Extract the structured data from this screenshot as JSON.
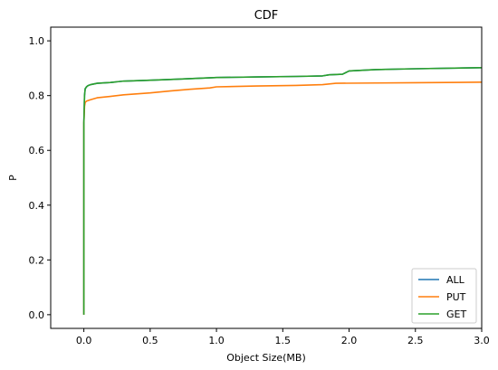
{
  "chart_data": {
    "type": "line",
    "title": "CDF",
    "xlabel": "Object Size(MB)",
    "ylabel": "P",
    "xlim": [
      -0.25,
      3.0
    ],
    "ylim": [
      -0.05,
      1.05
    ],
    "xticks": [
      0.0,
      0.5,
      1.0,
      1.5,
      2.0,
      2.5,
      3.0
    ],
    "xtick_labels": [
      "0.0",
      "0.5",
      "1.0",
      "1.5",
      "2.0",
      "2.5",
      "3.0"
    ],
    "yticks": [
      0.0,
      0.2,
      0.4,
      0.6,
      0.8,
      1.0
    ],
    "ytick_labels": [
      "0.0",
      "0.2",
      "0.4",
      "0.6",
      "0.8",
      "1.0"
    ],
    "grid": false,
    "legend_position": "lower-right",
    "series": [
      {
        "name": "ALL",
        "color": "#1f77b4",
        "x": [
          0.0,
          0.0,
          0.005,
          0.01,
          0.02,
          0.03,
          0.05,
          0.08,
          0.1,
          0.2,
          0.3,
          0.5,
          0.7,
          0.9,
          1.0,
          1.3,
          1.6,
          1.8,
          1.85,
          1.95,
          2.0,
          2.2,
          2.5,
          3.0
        ],
        "y": [
          0.0,
          0.7,
          0.8,
          0.825,
          0.832,
          0.836,
          0.84,
          0.843,
          0.845,
          0.848,
          0.853,
          0.856,
          0.86,
          0.864,
          0.866,
          0.868,
          0.87,
          0.872,
          0.876,
          0.878,
          0.89,
          0.895,
          0.898,
          0.902
        ]
      },
      {
        "name": "PUT",
        "color": "#ff7f0e",
        "x": [
          0.0,
          0.0,
          0.005,
          0.01,
          0.02,
          0.05,
          0.1,
          0.2,
          0.3,
          0.5,
          0.65,
          0.8,
          0.95,
          1.0,
          1.3,
          1.6,
          1.8,
          1.9,
          2.2,
          2.5,
          3.0
        ],
        "y": [
          0.0,
          0.7,
          0.76,
          0.775,
          0.78,
          0.785,
          0.792,
          0.797,
          0.803,
          0.81,
          0.817,
          0.823,
          0.828,
          0.832,
          0.835,
          0.837,
          0.84,
          0.845,
          0.846,
          0.847,
          0.849
        ]
      },
      {
        "name": "GET",
        "color": "#2ca02c",
        "x": [
          0.0,
          0.0,
          0.005,
          0.01,
          0.02,
          0.03,
          0.05,
          0.08,
          0.1,
          0.2,
          0.3,
          0.5,
          0.7,
          0.9,
          1.0,
          1.3,
          1.6,
          1.8,
          1.85,
          1.95,
          2.0,
          2.2,
          2.5,
          3.0
        ],
        "y": [
          0.0,
          0.7,
          0.8,
          0.825,
          0.832,
          0.836,
          0.84,
          0.843,
          0.845,
          0.848,
          0.853,
          0.856,
          0.86,
          0.864,
          0.866,
          0.868,
          0.87,
          0.872,
          0.876,
          0.878,
          0.89,
          0.895,
          0.898,
          0.902
        ]
      }
    ]
  }
}
